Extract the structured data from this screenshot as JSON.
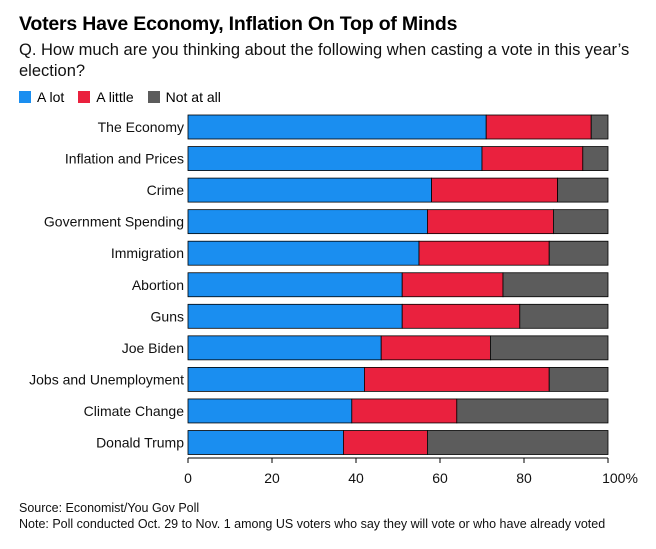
{
  "header": {
    "title": "Voters Have Economy, Inflation On Top of Minds",
    "subtitle": "Q. How much are you thinking about the following when casting a vote in this year’s election?"
  },
  "legend": [
    {
      "label": "A lot",
      "color": "#1a8ef0"
    },
    {
      "label": "A little",
      "color": "#ea213e"
    },
    {
      "label": "Not at all",
      "color": "#5c5c5c"
    }
  ],
  "chart_data": {
    "type": "bar",
    "orientation": "horizontal",
    "stacked": true,
    "title": "Voters Have Economy, Inflation On Top of Minds",
    "categories": [
      "The Economy",
      "Inflation and Prices",
      "Crime",
      "Government Spending",
      "Immigration",
      "Abortion",
      "Guns",
      "Joe Biden",
      "Jobs and Unemployment",
      "Climate Change",
      "Donald Trump"
    ],
    "series": [
      {
        "name": "A lot",
        "color": "#1a8ef0",
        "values": [
          71,
          70,
          58,
          57,
          55,
          51,
          51,
          46,
          42,
          39,
          37
        ]
      },
      {
        "name": "A little",
        "color": "#ea213e",
        "values": [
          25,
          24,
          30,
          30,
          31,
          24,
          28,
          26,
          44,
          25,
          20
        ]
      },
      {
        "name": "Not at all",
        "color": "#5c5c5c",
        "values": [
          4,
          6,
          12,
          13,
          14,
          25,
          21,
          28,
          14,
          36,
          43
        ]
      }
    ],
    "x_ticks": [
      "0",
      "20",
      "40",
      "60",
      "80",
      "100%"
    ],
    "xlim": [
      0,
      100
    ],
    "xlabel": "",
    "ylabel": "",
    "legend_position": "top-left"
  },
  "footer": {
    "source": "Source: Economist/You Gov Poll",
    "note": "Note: Poll conducted Oct. 29 to Nov. 1 among US voters who say they will vote or who have already voted"
  }
}
